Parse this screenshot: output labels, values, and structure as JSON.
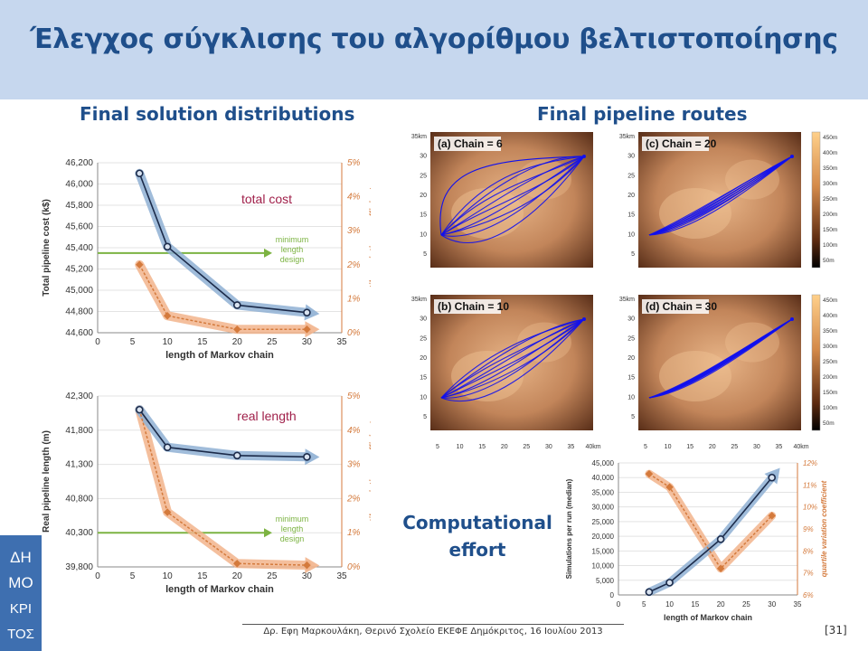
{
  "title": "Έλεγχος σύγκλισης του αλγορίθμου βελτιστοποίησης",
  "left_heading": "Final solution distributions",
  "right_heading": "Final pipeline routes",
  "computational_label_1": "Computational",
  "computational_label_2": "effort",
  "footer": "Δρ. Εφη Μαρκουλάκη, Θερινό Σχολείο ΕΚΕΦΕ Δημόκριτος, 16 Ιουλίου 2013",
  "page_number": "[31]",
  "logo_letters": [
    "ΔΗ",
    "ΜΟ",
    "ΚΡΙ",
    "ΤΟΣ"
  ],
  "colors": {
    "title_band": "#c6d7ee",
    "heading": "#1f4f8b",
    "series_main": "#1c2b4a",
    "band_main": "#8fb0d4",
    "series_cv": "#d47a3c",
    "band_cv": "#f2b48c",
    "min_line": "#7cb342",
    "annot": "#a0204a"
  },
  "chart_data": [
    {
      "type": "line",
      "annotation": "total cost",
      "ylabel": "Total pipeline cost (k$)",
      "y2label": "quartile variation coefficient",
      "xlabel": "length of Markov chain",
      "xlim": [
        0,
        35
      ],
      "ylim": [
        44600,
        46200
      ],
      "y2lim": [
        0,
        5
      ],
      "xticks": [
        "0",
        "5",
        "10",
        "15",
        "20",
        "25",
        "30",
        "35"
      ],
      "yticks": [
        "44,600",
        "44,800",
        "45,000",
        "45,200",
        "45,400",
        "45,600",
        "45,800",
        "46,000",
        "46,200"
      ],
      "y2ticks": [
        "0%",
        "1%",
        "2%",
        "3%",
        "4%",
        "5%"
      ],
      "minimum_label": [
        "minimum",
        "length",
        "design"
      ],
      "minimum_value": 45350,
      "series": [
        {
          "x": [
            6,
            10,
            20,
            30
          ],
          "values": [
            46100,
            45410,
            44860,
            44790
          ]
        },
        {
          "x": [
            6,
            10,
            20,
            30
          ],
          "values": [
            2.0,
            0.5,
            0.1,
            0.1
          ]
        }
      ]
    },
    {
      "type": "line",
      "annotation": "real length",
      "ylabel": "Real pipeline length (m)",
      "y2label": "quartile variation coefficient",
      "xlabel": "length of Markov chain",
      "xlim": [
        0,
        35
      ],
      "ylim": [
        39800,
        42300
      ],
      "y2lim": [
        0,
        5
      ],
      "xticks": [
        "0",
        "5",
        "10",
        "15",
        "20",
        "25",
        "30",
        "35"
      ],
      "yticks": [
        "39,800",
        "40,300",
        "40,800",
        "41,300",
        "41,800",
        "42,300"
      ],
      "y2ticks": [
        "0%",
        "1%",
        "2%",
        "3%",
        "4%",
        "5%"
      ],
      "minimum_label": [
        "minimum",
        "length",
        "design"
      ],
      "minimum_value": 40300,
      "series": [
        {
          "x": [
            6,
            10,
            20,
            30
          ],
          "values": [
            42100,
            41550,
            41430,
            41410
          ]
        },
        {
          "x": [
            6,
            10,
            20,
            30
          ],
          "values": [
            4.6,
            1.6,
            0.1,
            0.05
          ]
        }
      ]
    },
    {
      "type": "line",
      "ylabel": "Simulations per run (median)",
      "y2label": "quartile variation coefficient",
      "xlabel": "length of Markov chain",
      "xlim": [
        0,
        35
      ],
      "ylim": [
        0,
        45000
      ],
      "y2lim": [
        6,
        12
      ],
      "xticks": [
        "0",
        "5",
        "10",
        "15",
        "20",
        "25",
        "30",
        "35"
      ],
      "yticks": [
        "0",
        "5,000",
        "10,000",
        "15,000",
        "20,000",
        "25,000",
        "30,000",
        "35,000",
        "40,000",
        "45,000"
      ],
      "y2ticks": [
        "6%",
        "7%",
        "8%",
        "9%",
        "10%",
        "11%",
        "12%"
      ],
      "series": [
        {
          "x": [
            6,
            10,
            20,
            30
          ],
          "values": [
            1000,
            4200,
            19000,
            40000
          ]
        },
        {
          "x": [
            6,
            10,
            20,
            30
          ],
          "values": [
            11.5,
            10.9,
            7.2,
            9.6
          ]
        }
      ]
    }
  ],
  "route_maps": {
    "panels": [
      {
        "label": "(a) Chain = 6"
      },
      {
        "label": "(c) Chain = 20"
      },
      {
        "label": "(b) Chain = 10"
      },
      {
        "label": "(d) Chain = 30"
      }
    ],
    "y_ticks": [
      "35km",
      "30",
      "25",
      "20",
      "15",
      "10",
      "5"
    ],
    "x_ticks": [
      "5",
      "10",
      "15",
      "20",
      "25",
      "30",
      "35",
      "40km"
    ],
    "colorbar_ticks": [
      "450m",
      "400m",
      "350m",
      "300m",
      "250m",
      "200m",
      "150m",
      "100m",
      "50m"
    ],
    "colorbar_ticks_bottom": [
      "450m",
      "400m",
      "350m",
      "300m",
      "250m",
      "200m",
      "150m",
      "100m",
      "50m"
    ]
  }
}
